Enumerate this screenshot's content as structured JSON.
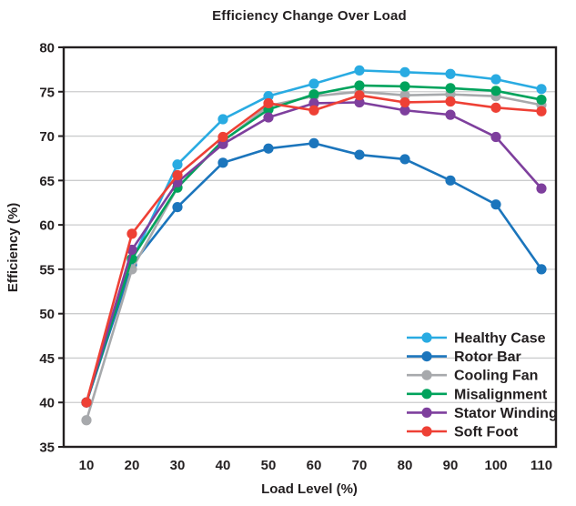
{
  "chart_data": {
    "type": "line",
    "title": "Efficiency Change Over Load",
    "xlabel": "Load Level (%)",
    "ylabel": "Efficiency (%)",
    "x": [
      10,
      20,
      30,
      40,
      50,
      60,
      70,
      80,
      90,
      100,
      110
    ],
    "xticks": [
      10,
      20,
      30,
      40,
      50,
      60,
      70,
      80,
      90,
      100,
      110
    ],
    "yticks": [
      35,
      40,
      45,
      50,
      55,
      60,
      65,
      70,
      75,
      80
    ],
    "xlim": [
      5,
      113
    ],
    "ylim": [
      35,
      80
    ],
    "grid": "horizontal",
    "legend_position": "lower right",
    "series": [
      {
        "name": "Healthy Case",
        "color": "#29abe2",
        "values": [
          40,
          56,
          66.8,
          71.9,
          74.5,
          75.9,
          77.4,
          77.2,
          77.0,
          76.4,
          75.3
        ]
      },
      {
        "name": "Rotor Bar",
        "color": "#1b75bc",
        "values": [
          40,
          55.5,
          62,
          67,
          68.6,
          69.2,
          67.9,
          67.4,
          65,
          62.3,
          55
        ]
      },
      {
        "name": "Cooling Fan",
        "color": "#a7a9ac",
        "values": [
          38,
          55,
          64.2,
          69.4,
          73.4,
          74.5,
          75.0,
          74.6,
          74.7,
          74.5,
          73.5
        ]
      },
      {
        "name": "Misalignment",
        "color": "#00a35c",
        "values": [
          40,
          56.2,
          64.2,
          69.5,
          73.0,
          74.7,
          75.7,
          75.6,
          75.4,
          75.1,
          74.1
        ]
      },
      {
        "name": "Stator Winding",
        "color": "#7e3f9d",
        "values": [
          40,
          57.2,
          64.8,
          69.1,
          72.1,
          73.7,
          73.8,
          72.9,
          72.4,
          69.9,
          64.1
        ]
      },
      {
        "name": "Soft Foot",
        "color": "#ee4035",
        "values": [
          40,
          59,
          65.6,
          69.9,
          73.7,
          72.9,
          74.6,
          73.8,
          73.9,
          73.2,
          72.8
        ]
      }
    ],
    "style": {
      "frame_color": "#231f20",
      "grid_color": "#cbcccd",
      "text_color": "#231f20",
      "background": "#ffffff"
    }
  }
}
